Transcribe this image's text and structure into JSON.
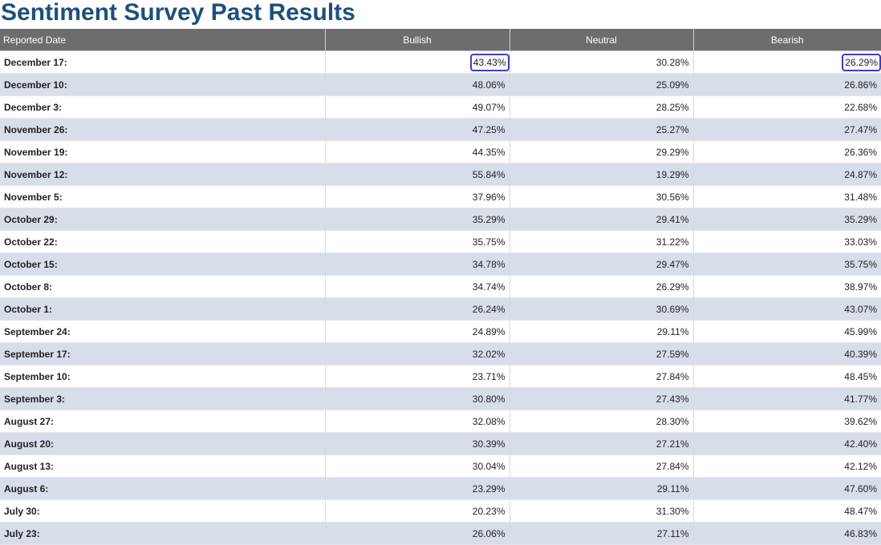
{
  "page": {
    "title": "Sentiment Survey Past Results"
  },
  "table": {
    "headers": [
      "Reported Date",
      "Bullish",
      "Neutral",
      "Bearish"
    ],
    "rows": [
      {
        "date": "December 17:",
        "bullish": "43.43%",
        "neutral": "30.28%",
        "bearish": "26.29%"
      },
      {
        "date": "December 10:",
        "bullish": "48.06%",
        "neutral": "25.09%",
        "bearish": "26.86%"
      },
      {
        "date": "December 3:",
        "bullish": "49.07%",
        "neutral": "28.25%",
        "bearish": "22.68%"
      },
      {
        "date": "November 26:",
        "bullish": "47.25%",
        "neutral": "25.27%",
        "bearish": "27.47%"
      },
      {
        "date": "November 19:",
        "bullish": "44.35%",
        "neutral": "29.29%",
        "bearish": "26.36%"
      },
      {
        "date": "November 12:",
        "bullish": "55.84%",
        "neutral": "19.29%",
        "bearish": "24.87%"
      },
      {
        "date": "November 5:",
        "bullish": "37.96%",
        "neutral": "30.56%",
        "bearish": "31.48%"
      },
      {
        "date": "October 29:",
        "bullish": "35.29%",
        "neutral": "29.41%",
        "bearish": "35.29%"
      },
      {
        "date": "October 22:",
        "bullish": "35.75%",
        "neutral": "31.22%",
        "bearish": "33.03%"
      },
      {
        "date": "October 15:",
        "bullish": "34.78%",
        "neutral": "29.47%",
        "bearish": "35.75%"
      },
      {
        "date": "October 8:",
        "bullish": "34.74%",
        "neutral": "26.29%",
        "bearish": "38.97%"
      },
      {
        "date": "October 1:",
        "bullish": "26.24%",
        "neutral": "30.69%",
        "bearish": "43.07%"
      },
      {
        "date": "September 24:",
        "bullish": "24.89%",
        "neutral": "29.11%",
        "bearish": "45.99%"
      },
      {
        "date": "September 17:",
        "bullish": "32.02%",
        "neutral": "27.59%",
        "bearish": "40.39%"
      },
      {
        "date": "September 10:",
        "bullish": "23.71%",
        "neutral": "27.84%",
        "bearish": "48.45%"
      },
      {
        "date": "September 3:",
        "bullish": "30.80%",
        "neutral": "27.43%",
        "bearish": "41.77%"
      },
      {
        "date": "August 27:",
        "bullish": "32.08%",
        "neutral": "28.30%",
        "bearish": "39.62%"
      },
      {
        "date": "August 20:",
        "bullish": "30.39%",
        "neutral": "27.21%",
        "bearish": "42.40%"
      },
      {
        "date": "August 13:",
        "bullish": "30.04%",
        "neutral": "27.84%",
        "bearish": "42.12%"
      },
      {
        "date": "August 6:",
        "bullish": "23.29%",
        "neutral": "29.11%",
        "bearish": "47.60%"
      },
      {
        "date": "July 30:",
        "bullish": "20.23%",
        "neutral": "31.30%",
        "bearish": "48.47%"
      },
      {
        "date": "July 23:",
        "bullish": "26.06%",
        "neutral": "27.11%",
        "bearish": "46.83%"
      }
    ]
  },
  "colors": {
    "title": "#1e4f7c",
    "header_bg": "#6d6d6d",
    "stripe": "#d8dee9",
    "highlight_border": "#3a3fc4"
  }
}
